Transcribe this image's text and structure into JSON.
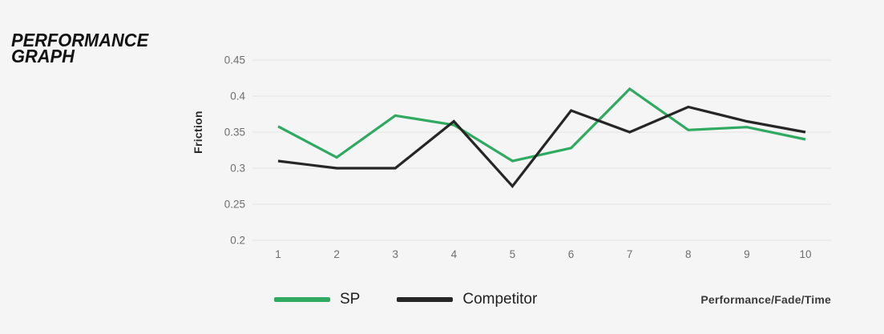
{
  "page": {
    "background_color": "#f5f5f5",
    "title_line1": "PERFORMANCE",
    "title_line2": "GRAPH"
  },
  "chart_data": {
    "type": "line",
    "title": "PERFORMANCE GRAPH",
    "ylabel": "Friction",
    "x_note": "Performance/Fade/Time",
    "categories": [
      "1",
      "2",
      "3",
      "4",
      "5",
      "6",
      "7",
      "8",
      "9",
      "10"
    ],
    "ylim": [
      0.2,
      0.45
    ],
    "yticks": [
      0.45,
      0.4,
      0.35,
      0.3,
      0.25,
      0.2
    ],
    "ytick_labels": [
      "0.45",
      "0.4",
      "0.35",
      "0.3",
      "0.25",
      "0.2"
    ],
    "grid": "horizontal gridlines only, light gray",
    "legend_position": "bottom-center",
    "colors": {
      "background": "#f5f5f5",
      "gridline": "#e2e2e2",
      "tick_text": "#6e6e6e",
      "sp_green": "#2faa60",
      "competitor_black": "#262626"
    },
    "series": [
      {
        "name": "SP",
        "color": "#2faa60",
        "values": [
          0.358,
          0.315,
          0.373,
          0.36,
          0.31,
          0.328,
          0.41,
          0.353,
          0.357,
          0.34
        ]
      },
      {
        "name": "Competitor",
        "color": "#262626",
        "values": [
          0.31,
          0.3,
          0.3,
          0.365,
          0.275,
          0.38,
          0.35,
          0.385,
          0.365,
          0.35
        ]
      }
    ]
  }
}
